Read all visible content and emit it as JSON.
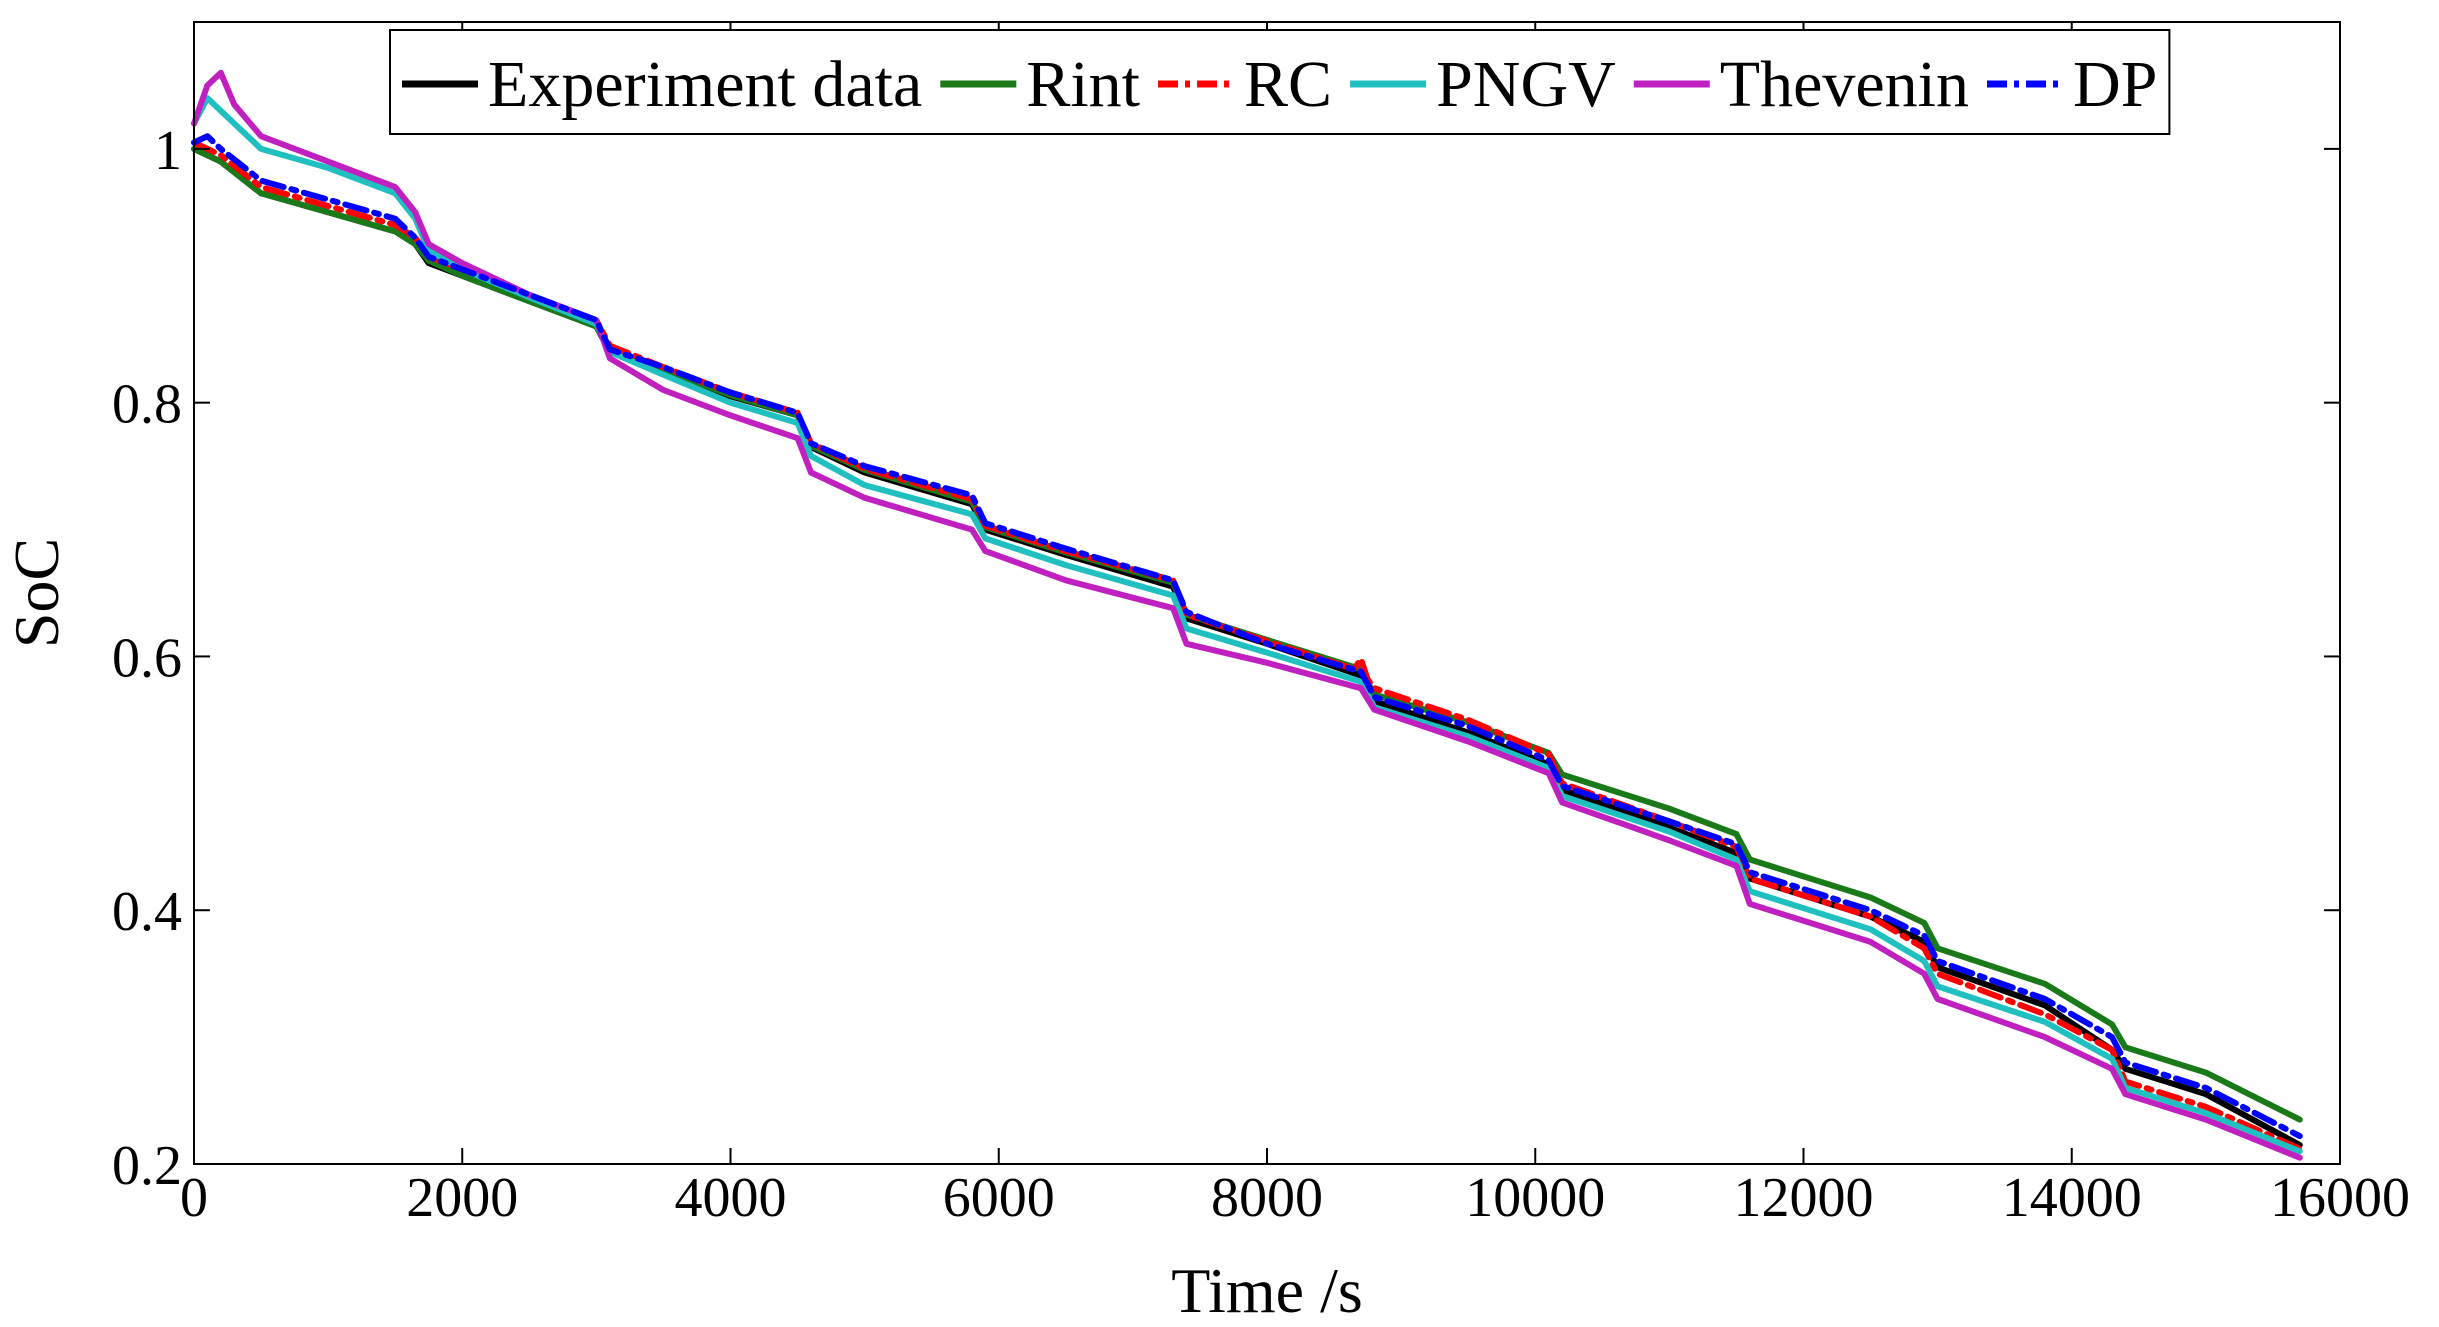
{
  "chart_data": {
    "type": "line",
    "title": "",
    "xlabel": "Time /s",
    "ylabel": "SoC",
    "xlim": [
      0,
      16000
    ],
    "ylim": [
      0.2,
      1.1
    ],
    "xticks": [
      0,
      2000,
      4000,
      6000,
      8000,
      10000,
      12000,
      14000,
      16000
    ],
    "yticks": [
      0.2,
      0.4,
      0.6,
      0.8,
      1
    ],
    "xtick_labels": [
      "0",
      "2000",
      "4000",
      "6000",
      "8000",
      "10000",
      "12000",
      "14000",
      "16000"
    ],
    "ytick_labels": [
      "0.2",
      "0.4",
      "0.6",
      "0.8",
      "1"
    ],
    "grid": false,
    "legend_position": "top, horizontal",
    "series": [
      {
        "name": "Experiment data",
        "color": "#000000",
        "style": "solid",
        "x": [
          0,
          200,
          500,
          1000,
          1500,
          1650,
          1750,
          2000,
          2500,
          3000,
          3100,
          3500,
          4000,
          4500,
          4600,
          5000,
          5800,
          5900,
          6500,
          7300,
          7400,
          8000,
          8700,
          8800,
          9500,
          10100,
          10200,
          11000,
          11500,
          11600,
          12500,
          12900,
          13000,
          13800,
          14300,
          14400,
          15000,
          15700
        ],
        "y": [
          1.0,
          0.99,
          0.965,
          0.95,
          0.935,
          0.925,
          0.91,
          0.9,
          0.88,
          0.86,
          0.84,
          0.825,
          0.805,
          0.79,
          0.765,
          0.745,
          0.72,
          0.7,
          0.68,
          0.655,
          0.63,
          0.61,
          0.585,
          0.565,
          0.54,
          0.515,
          0.495,
          0.465,
          0.445,
          0.425,
          0.395,
          0.375,
          0.355,
          0.325,
          0.29,
          0.275,
          0.255,
          0.215
        ]
      },
      {
        "name": "Rint",
        "color": "#1a7a1a",
        "style": "solid",
        "x": [
          0,
          200,
          500,
          1000,
          1500,
          1650,
          1750,
          2000,
          2500,
          3000,
          3100,
          3500,
          4000,
          4500,
          4600,
          5000,
          5800,
          5900,
          6500,
          7300,
          7400,
          8000,
          8700,
          8800,
          9500,
          10100,
          10200,
          11000,
          11500,
          11600,
          12500,
          12900,
          13000,
          13800,
          14300,
          14400,
          15000,
          15700
        ],
        "y": [
          1.0,
          0.99,
          0.965,
          0.95,
          0.935,
          0.925,
          0.912,
          0.9,
          0.88,
          0.86,
          0.842,
          0.826,
          0.806,
          0.79,
          0.766,
          0.747,
          0.722,
          0.702,
          0.682,
          0.658,
          0.633,
          0.613,
          0.59,
          0.57,
          0.548,
          0.524,
          0.507,
          0.48,
          0.46,
          0.44,
          0.41,
          0.39,
          0.37,
          0.342,
          0.31,
          0.292,
          0.272,
          0.235
        ]
      },
      {
        "name": "RC",
        "color": "#ff0000",
        "style": "dashdot",
        "x": [
          0,
          200,
          500,
          1000,
          1500,
          1650,
          1750,
          2000,
          2500,
          3000,
          3100,
          3500,
          4000,
          4500,
          4600,
          5000,
          5800,
          5900,
          6500,
          7300,
          7400,
          8000,
          8650,
          8700,
          8750,
          8800,
          9500,
          10100,
          10200,
          11000,
          11500,
          11600,
          12500,
          12900,
          13000,
          13800,
          14300,
          14400,
          15000,
          15700
        ],
        "y": [
          1.005,
          0.995,
          0.97,
          0.955,
          0.94,
          0.93,
          0.915,
          0.905,
          0.885,
          0.865,
          0.845,
          0.828,
          0.808,
          0.792,
          0.768,
          0.748,
          0.724,
          0.703,
          0.683,
          0.66,
          0.633,
          0.612,
          0.59,
          0.598,
          0.582,
          0.575,
          0.55,
          0.523,
          0.5,
          0.47,
          0.45,
          0.425,
          0.395,
          0.37,
          0.35,
          0.318,
          0.29,
          0.265,
          0.245,
          0.212
        ]
      },
      {
        "name": "PNGV",
        "color": "#20c0c0",
        "style": "solid",
        "x": [
          0,
          100,
          200,
          500,
          1000,
          1500,
          1650,
          1750,
          2000,
          2500,
          3000,
          3100,
          3500,
          4000,
          4500,
          4600,
          5000,
          5800,
          5900,
          6500,
          7300,
          7400,
          8000,
          8700,
          8800,
          9500,
          10100,
          10200,
          11000,
          11500,
          11600,
          12500,
          12900,
          13000,
          13800,
          14300,
          14400,
          15000,
          15700
        ],
        "y": [
          1.02,
          1.04,
          1.03,
          1.0,
          0.985,
          0.965,
          0.945,
          0.92,
          0.905,
          0.883,
          0.862,
          0.84,
          0.822,
          0.8,
          0.784,
          0.758,
          0.735,
          0.712,
          0.693,
          0.672,
          0.648,
          0.622,
          0.603,
          0.58,
          0.56,
          0.537,
          0.512,
          0.49,
          0.462,
          0.44,
          0.415,
          0.385,
          0.36,
          0.34,
          0.312,
          0.283,
          0.26,
          0.24,
          0.21
        ]
      },
      {
        "name": "Thevenin",
        "color": "#c020c0",
        "style": "solid",
        "x": [
          0,
          100,
          200,
          300,
          500,
          1000,
          1500,
          1650,
          1750,
          2000,
          2500,
          3000,
          3100,
          3500,
          4000,
          4500,
          4600,
          5000,
          5800,
          5900,
          6500,
          7300,
          7400,
          8000,
          8700,
          8800,
          9500,
          10100,
          10200,
          11000,
          11500,
          11600,
          12500,
          12900,
          13000,
          13800,
          14300,
          14400,
          15000,
          15700
        ],
        "y": [
          1.02,
          1.05,
          1.06,
          1.035,
          1.01,
          0.99,
          0.97,
          0.95,
          0.925,
          0.91,
          0.885,
          0.865,
          0.835,
          0.81,
          0.79,
          0.772,
          0.745,
          0.725,
          0.7,
          0.683,
          0.66,
          0.638,
          0.61,
          0.595,
          0.575,
          0.558,
          0.533,
          0.508,
          0.485,
          0.455,
          0.435,
          0.405,
          0.375,
          0.35,
          0.33,
          0.3,
          0.275,
          0.255,
          0.235,
          0.205
        ]
      },
      {
        "name": "DP",
        "color": "#0000ff",
        "style": "dashdot",
        "x": [
          0,
          100,
          200,
          500,
          1000,
          1500,
          1650,
          1750,
          2000,
          2500,
          3000,
          3100,
          3500,
          4000,
          4500,
          4600,
          5000,
          5800,
          5900,
          6500,
          7300,
          7400,
          8000,
          8700,
          8800,
          9500,
          10100,
          10200,
          11000,
          11500,
          11600,
          12500,
          12900,
          13000,
          13800,
          14300,
          14400,
          15000,
          15700
        ],
        "y": [
          1.005,
          1.01,
          1.0,
          0.975,
          0.96,
          0.945,
          0.93,
          0.915,
          0.905,
          0.885,
          0.865,
          0.842,
          0.828,
          0.808,
          0.792,
          0.768,
          0.75,
          0.727,
          0.705,
          0.685,
          0.66,
          0.635,
          0.61,
          0.588,
          0.568,
          0.545,
          0.518,
          0.498,
          0.47,
          0.452,
          0.43,
          0.4,
          0.38,
          0.36,
          0.33,
          0.3,
          0.28,
          0.26,
          0.222
        ]
      }
    ]
  }
}
